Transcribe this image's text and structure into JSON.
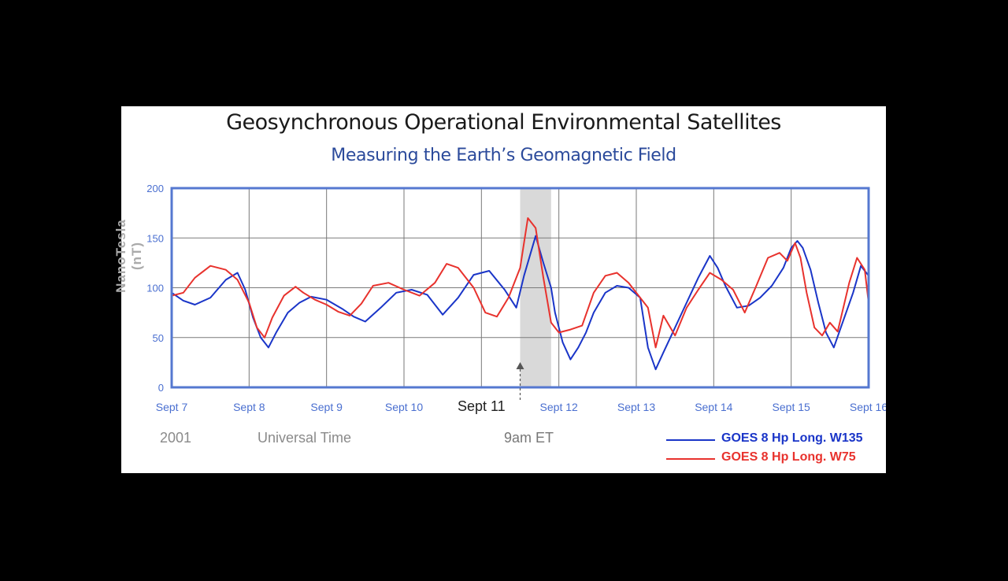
{
  "panel": {
    "title": "Geosynchronous Operational Environmental Satellites",
    "subtitle": "Measuring the Earth’s Geomagnetic Field",
    "ylabel": "NanoTesla (nT)",
    "year": "2001",
    "xlabel": "Universal Time",
    "event_label": "9am ET",
    "highlight_label": "Sept 11"
  },
  "colors": {
    "blue_series": "#1a35c8",
    "red_series": "#e8322d",
    "axis_text": "#4a6fd0",
    "frame": "#5578d0",
    "grid": "#7a7a7a",
    "highlight": "#d9d9d9"
  },
  "legend": [
    {
      "label": "GOES 8 Hp Long. W135",
      "color": "#1a35c8"
    },
    {
      "label": "GOES 8 Hp Long. W75",
      "color": "#e8322d"
    }
  ],
  "chart_data": {
    "type": "line",
    "title": "Geosynchronous Operational Environmental Satellites",
    "subtitle": "Measuring the Earth’s Geomagnetic Field",
    "xlabel": "Universal Time",
    "ylabel": "NanoTesla (nT)",
    "xlim": [
      7,
      16
    ],
    "ylim": [
      0,
      200
    ],
    "yticks": [
      0,
      50,
      100,
      150,
      200
    ],
    "xticks": [
      {
        "value": 7,
        "label": "Sept 7"
      },
      {
        "value": 8,
        "label": "Sept 8"
      },
      {
        "value": 9,
        "label": "Sept 9"
      },
      {
        "value": 10,
        "label": "Sept 10"
      },
      {
        "value": 11,
        "label": "Sept 11"
      },
      {
        "value": 12,
        "label": "Sept 12"
      },
      {
        "value": 13,
        "label": "Sept 13"
      },
      {
        "value": 14,
        "label": "Sept 14"
      },
      {
        "value": 15,
        "label": "Sept 15"
      },
      {
        "value": 16,
        "label": "Sept 16"
      }
    ],
    "grid": true,
    "highlight_band": [
      11.5,
      11.9
    ],
    "event_marker_x": 11.5,
    "series": [
      {
        "name": "GOES 8 Hp Long. W135",
        "color": "#1a35c8",
        "x": [
          7.0,
          7.15,
          7.3,
          7.5,
          7.7,
          7.85,
          7.95,
          8.05,
          8.15,
          8.25,
          8.35,
          8.5,
          8.65,
          8.8,
          9.0,
          9.2,
          9.35,
          9.5,
          9.7,
          9.9,
          10.1,
          10.3,
          10.5,
          10.7,
          10.9,
          11.1,
          11.3,
          11.45,
          11.55,
          11.7,
          11.8,
          11.9,
          11.95,
          12.05,
          12.15,
          12.25,
          12.35,
          12.45,
          12.6,
          12.75,
          12.9,
          13.05,
          13.15,
          13.25,
          13.35,
          13.5,
          13.65,
          13.8,
          13.95,
          14.05,
          14.15,
          14.3,
          14.45,
          14.6,
          14.75,
          14.9,
          15.0,
          15.08,
          15.15,
          15.25,
          15.35,
          15.45,
          15.55,
          15.65,
          15.8,
          15.9,
          16.0
        ],
        "y": [
          95,
          87,
          83,
          90,
          108,
          115,
          98,
          70,
          50,
          40,
          55,
          75,
          85,
          91,
          88,
          79,
          71,
          66,
          80,
          95,
          98,
          93,
          73,
          90,
          113,
          117,
          98,
          80,
          112,
          152,
          125,
          100,
          75,
          45,
          28,
          40,
          55,
          75,
          95,
          102,
          100,
          90,
          40,
          18,
          35,
          60,
          85,
          110,
          132,
          120,
          102,
          80,
          82,
          90,
          102,
          120,
          140,
          147,
          140,
          118,
          85,
          55,
          40,
          62,
          95,
          122,
          112
        ]
      },
      {
        "name": "GOES 8 Hp Long. W75",
        "color": "#e8322d",
        "x": [
          7.0,
          7.15,
          7.3,
          7.5,
          7.7,
          7.85,
          8.0,
          8.1,
          8.2,
          8.3,
          8.45,
          8.6,
          8.7,
          8.85,
          9.0,
          9.15,
          9.3,
          9.45,
          9.6,
          9.8,
          10.0,
          10.2,
          10.4,
          10.55,
          10.7,
          10.9,
          11.05,
          11.2,
          11.35,
          11.5,
          11.6,
          11.7,
          11.8,
          11.9,
          12.0,
          12.15,
          12.3,
          12.45,
          12.6,
          12.75,
          12.9,
          13.05,
          13.15,
          13.25,
          13.35,
          13.5,
          13.65,
          13.8,
          13.95,
          14.1,
          14.25,
          14.4,
          14.55,
          14.7,
          14.85,
          14.95,
          15.05,
          15.12,
          15.2,
          15.3,
          15.4,
          15.5,
          15.6,
          15.75,
          15.85,
          15.95,
          16.0
        ],
        "y": [
          92,
          95,
          110,
          122,
          118,
          108,
          85,
          60,
          50,
          70,
          92,
          101,
          95,
          88,
          83,
          76,
          72,
          84,
          102,
          105,
          98,
          92,
          105,
          124,
          120,
          100,
          75,
          71,
          90,
          120,
          170,
          160,
          110,
          65,
          55,
          58,
          62,
          95,
          112,
          115,
          105,
          90,
          80,
          40,
          72,
          52,
          80,
          98,
          115,
          108,
          98,
          75,
          102,
          130,
          135,
          127,
          145,
          130,
          95,
          60,
          52,
          65,
          56,
          105,
          130,
          118,
          85
        ]
      }
    ]
  }
}
